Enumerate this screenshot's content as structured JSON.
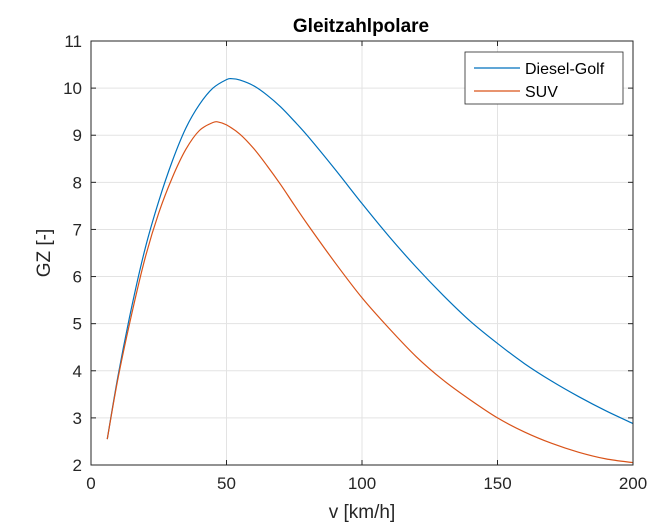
{
  "chart_data": {
    "type": "line",
    "title": "Gleitzahlpolare",
    "xlabel": "v [km/h]",
    "ylabel": "GZ [-]",
    "xlim": [
      0,
      200
    ],
    "ylim": [
      2,
      11
    ],
    "xticks": [
      0,
      50,
      100,
      150,
      200
    ],
    "yticks": [
      2,
      3,
      4,
      5,
      6,
      7,
      8,
      9,
      10,
      11
    ],
    "grid": true,
    "legend_position": "top-right",
    "series": [
      {
        "name": "Diesel-Golf",
        "color": "#0072BD",
        "x": [
          6,
          10,
          15,
          20,
          25,
          30,
          35,
          40,
          45,
          50,
          52,
          55,
          60,
          65,
          70,
          75,
          80,
          90,
          100,
          110,
          120,
          130,
          140,
          150,
          160,
          170,
          180,
          190,
          200
        ],
        "y": [
          2.55,
          3.9,
          5.35,
          6.6,
          7.6,
          8.45,
          9.15,
          9.65,
          10.0,
          10.18,
          10.2,
          10.17,
          10.05,
          9.85,
          9.6,
          9.3,
          8.98,
          8.28,
          7.55,
          6.85,
          6.2,
          5.6,
          5.05,
          4.58,
          4.15,
          3.78,
          3.45,
          3.15,
          2.88
        ]
      },
      {
        "name": "SUV",
        "color": "#D95319",
        "x": [
          6,
          10,
          15,
          20,
          25,
          30,
          35,
          40,
          45,
          47,
          50,
          55,
          60,
          65,
          70,
          75,
          80,
          90,
          100,
          110,
          120,
          130,
          140,
          150,
          160,
          170,
          180,
          190,
          200
        ],
        "y": [
          2.55,
          3.85,
          5.2,
          6.4,
          7.35,
          8.1,
          8.7,
          9.1,
          9.27,
          9.28,
          9.22,
          9.02,
          8.72,
          8.35,
          7.95,
          7.52,
          7.1,
          6.3,
          5.55,
          4.9,
          4.3,
          3.8,
          3.38,
          3.0,
          2.7,
          2.46,
          2.27,
          2.13,
          2.05
        ]
      }
    ]
  }
}
